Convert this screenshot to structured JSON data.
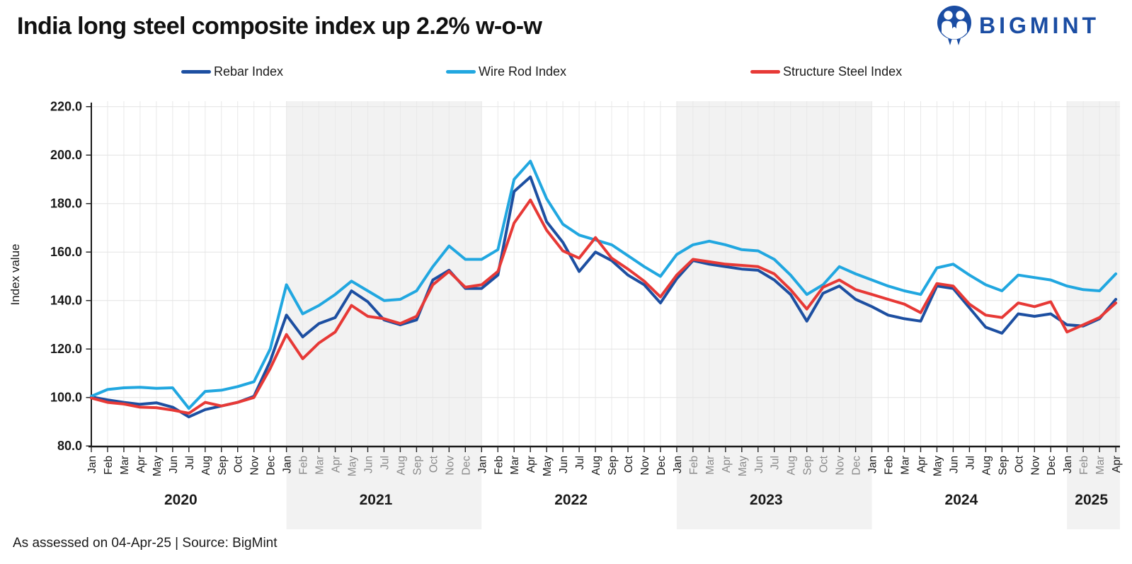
{
  "title": "India long steel composite index up 2.2% w-o-w",
  "logo": {
    "name": "BigMint",
    "text": "BIGMINT",
    "accent": "#1b4da3"
  },
  "footer": {
    "text": "As assessed on 04-Apr-25  |  Source: BigMint"
  },
  "chart_data": {
    "type": "line",
    "title": "India long steel composite index up 2.2% w-o-w",
    "ylabel": "Index value",
    "ylim": [
      80,
      220
    ],
    "ytick_step": 20,
    "grid": true,
    "legend_position": "top",
    "band_color": "#f2f2f2",
    "years": [
      {
        "year": "2020",
        "shaded": false,
        "muted_labels": [],
        "months": [
          "Jan",
          "Feb",
          "Mar",
          "Apr",
          "May",
          "Jun",
          "Jul",
          "Aug",
          "Sep",
          "Oct",
          "Nov",
          "Dec"
        ]
      },
      {
        "year": "2021",
        "shaded": true,
        "muted_labels": [
          "Feb",
          "Mar",
          "Apr",
          "May",
          "Jun",
          "Jul",
          "Aug",
          "Sep",
          "Oct",
          "Nov",
          "Dec"
        ],
        "months": [
          "Jan",
          "Feb",
          "Mar",
          "Apr",
          "May",
          "Jun",
          "Jul",
          "Aug",
          "Sep",
          "Oct",
          "Nov",
          "Dec"
        ]
      },
      {
        "year": "2022",
        "shaded": false,
        "muted_labels": [],
        "months": [
          "Jan",
          "Feb",
          "Mar",
          "Apr",
          "May",
          "Jun",
          "Jul",
          "Aug",
          "Sep",
          "Oct",
          "Nov",
          "Dec"
        ]
      },
      {
        "year": "2023",
        "shaded": true,
        "muted_labels": [
          "Feb",
          "Mar",
          "Apr",
          "May",
          "Jun",
          "Jul",
          "Aug",
          "Sep",
          "Oct",
          "Nov",
          "Dec"
        ],
        "months": [
          "Jan",
          "Feb",
          "Mar",
          "Apr",
          "May",
          "Jun",
          "Jul",
          "Aug",
          "Sep",
          "Oct",
          "Nov",
          "Dec"
        ]
      },
      {
        "year": "2024",
        "shaded": false,
        "muted_labels": [],
        "months": [
          "Jan",
          "Feb",
          "Mar",
          "Apr",
          "May",
          "Jun",
          "Jul",
          "Aug",
          "Sep",
          "Oct",
          "Nov",
          "Dec"
        ]
      },
      {
        "year": "2025",
        "shaded": true,
        "muted_labels": [
          "Feb",
          "Mar"
        ],
        "months": [
          "Jan",
          "Feb",
          "Mar",
          "Apr"
        ]
      }
    ],
    "series": [
      {
        "name": "Rebar Index",
        "color": "#1d4fa1",
        "values": [
          100.2,
          99,
          98,
          97.2,
          97.8,
          96,
          92,
          95,
          96.5,
          98,
          100.5,
          115,
          134,
          125,
          130.5,
          133,
          144,
          139.5,
          132,
          130,
          132,
          148.5,
          152.5,
          145,
          145,
          150.5,
          185,
          191,
          172.5,
          164,
          152,
          160,
          156.5,
          150.5,
          146.5,
          139,
          149,
          156.5,
          155,
          154,
          153,
          152.5,
          148.5,
          142.5,
          131.5,
          143,
          146,
          140.5,
          137.5,
          134,
          132.5,
          131.5,
          146,
          145,
          137,
          129,
          126.5,
          134.5,
          133.5,
          134.5,
          130,
          129.5,
          132.5,
          140.5
        ]
      },
      {
        "name": "Wire Rod Index",
        "color": "#21a7e0",
        "values": [
          100.5,
          103.3,
          104,
          104.2,
          103.8,
          104,
          95.5,
          102.5,
          103,
          104.5,
          106.5,
          120,
          146.5,
          134.5,
          138,
          142.5,
          148,
          144,
          140,
          140.5,
          144,
          154,
          162.5,
          157,
          157,
          161,
          190,
          197.5,
          182,
          171.5,
          167,
          165,
          163,
          158.5,
          154,
          150,
          159,
          163,
          164.5,
          163,
          161,
          160.5,
          157,
          150.5,
          142.5,
          146.5,
          154,
          151,
          148.5,
          146,
          144,
          142.5,
          153.5,
          155,
          150.5,
          146.5,
          144,
          150.5,
          149.5,
          148.5,
          146,
          144.5,
          144,
          151
        ]
      },
      {
        "name": "Structure Steel Index",
        "color": "#e73936",
        "values": [
          99.8,
          98,
          97.3,
          96,
          95.8,
          94.8,
          93.5,
          98,
          96.5,
          98,
          100,
          112,
          126,
          116,
          122.5,
          127,
          138,
          133.5,
          132.5,
          130.5,
          133.5,
          146.5,
          152,
          145.5,
          146.5,
          152,
          172,
          181.5,
          169,
          160.5,
          157.5,
          166,
          157.5,
          153,
          148,
          141.5,
          150.5,
          157,
          156,
          155,
          154.5,
          154,
          151,
          144.5,
          136.5,
          145.5,
          148.5,
          144.5,
          142.5,
          140.5,
          138.5,
          135,
          147,
          146,
          138.5,
          134,
          133,
          139,
          137.5,
          139.5,
          127,
          130,
          133,
          139
        ]
      }
    ]
  }
}
